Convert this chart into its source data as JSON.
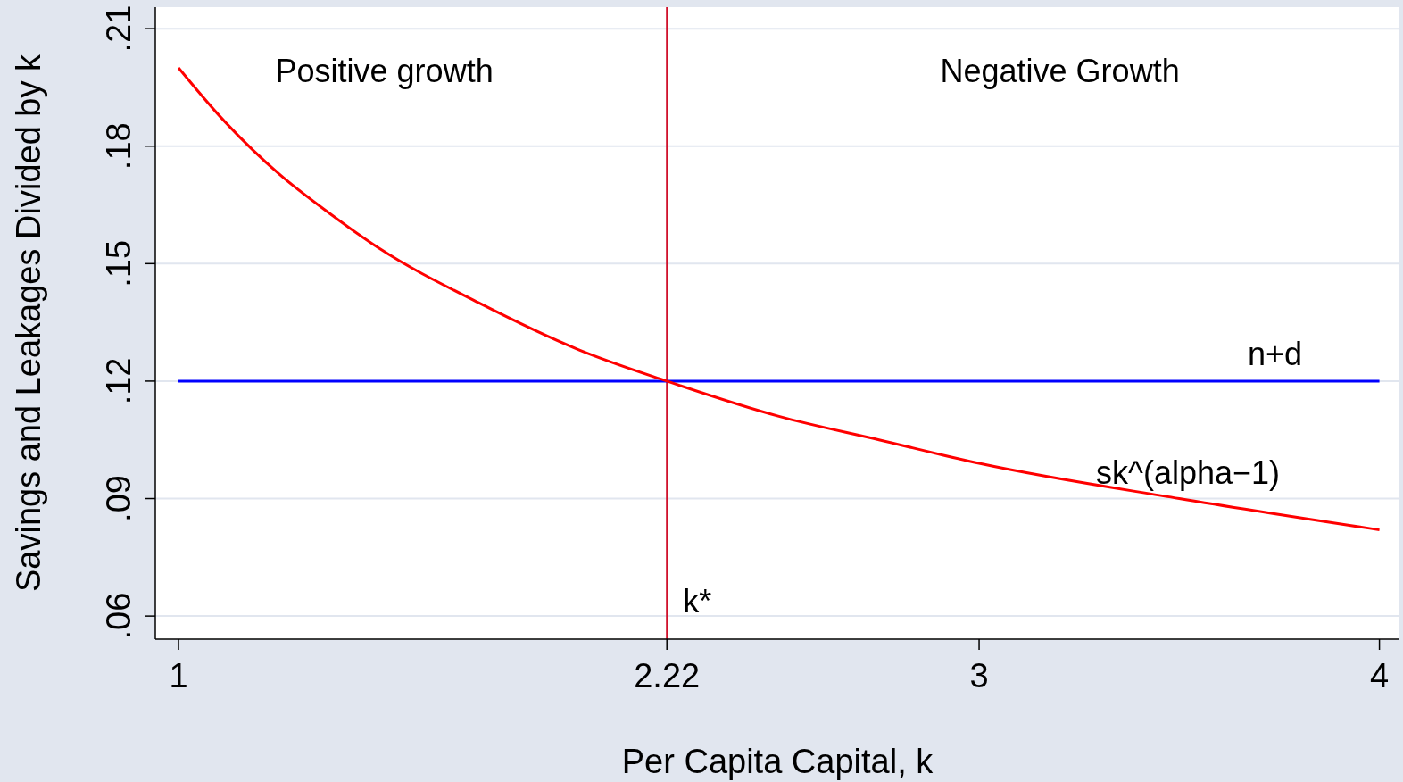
{
  "chart_data": {
    "type": "line",
    "xlabel": "Per Capita Capital, k",
    "ylabel": "Savings and Leakages Divided by k",
    "xlim": [
      0.942,
      4.05
    ],
    "ylim": [
      0.0541,
      0.2155
    ],
    "xticks": [
      1,
      2.22,
      3,
      4
    ],
    "yticks": [
      {
        "value": 0.06,
        "label": ".06"
      },
      {
        "value": 0.09,
        "label": ".09"
      },
      {
        "value": 0.12,
        "label": ".12"
      },
      {
        "value": 0.15,
        "label": ".15"
      },
      {
        "value": 0.18,
        "label": ".18"
      },
      {
        "value": 0.21,
        "label": ".21"
      }
    ],
    "grid": "y",
    "marker": "none",
    "line_style": "solid",
    "series": [
      {
        "name": "n+d",
        "color": "#0000ff",
        "x": [
          1,
          4
        ],
        "values": [
          0.12,
          0.12
        ]
      },
      {
        "name": "sk^(alpha−1)",
        "color": "#ff0000",
        "x": [
          1,
          1.1,
          1.25,
          1.375,
          1.5,
          1.75,
          2,
          2.22,
          2.5,
          2.75,
          3,
          3.5,
          4
        ],
        "values": [
          0.2,
          0.188,
          0.173,
          0.163,
          0.154,
          0.14,
          0.128,
          0.12,
          0.111,
          0.105,
          0.099,
          0.09,
          0.082
        ]
      }
    ],
    "ref_lines": [
      {
        "axis": "x",
        "value": 2.22,
        "label": "k*",
        "color": "#d0112b"
      }
    ],
    "annotations": [
      "Positive growth",
      "Negative Growth"
    ]
  }
}
